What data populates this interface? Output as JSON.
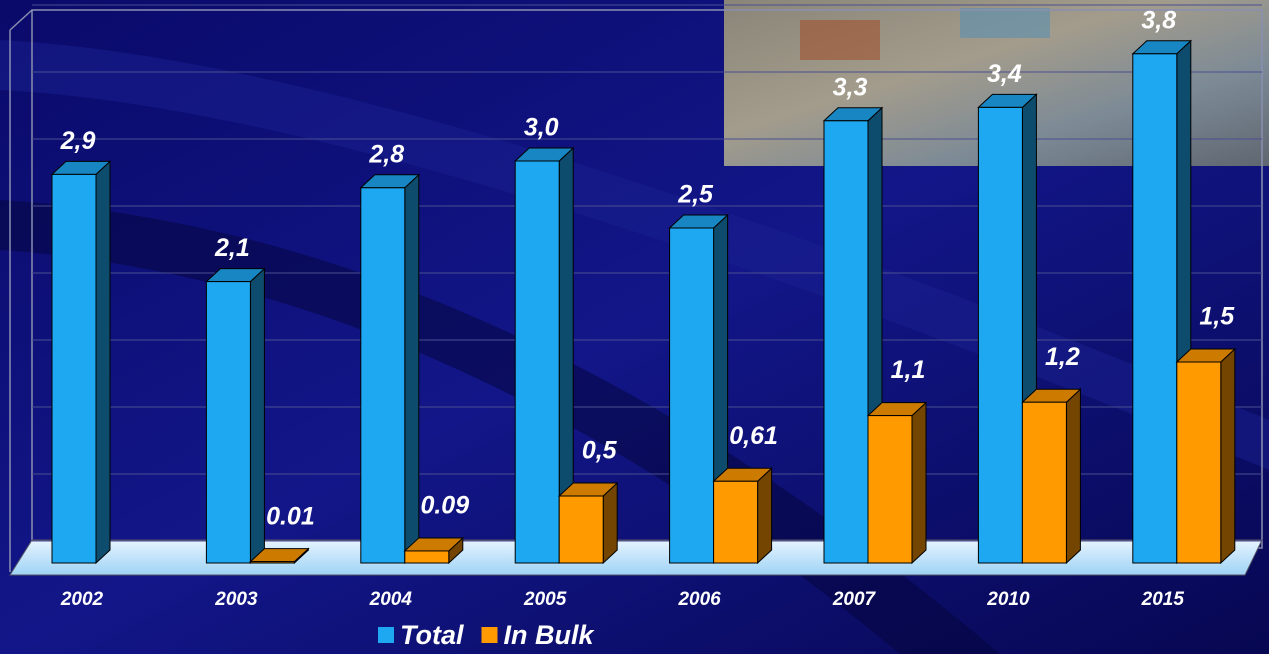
{
  "chart_data": {
    "type": "bar3d",
    "categories": [
      "2002",
      "2003",
      "2004",
      "2005",
      "2006",
      "2007",
      "2010",
      "2015"
    ],
    "series": [
      {
        "name": "Total",
        "color": "#1ea8f2",
        "values": [
          2.9,
          2.1,
          2.8,
          3.0,
          2.5,
          3.3,
          3.4,
          3.8
        ],
        "value_labels": [
          "2,9",
          "2,1",
          "2,8",
          "3,0",
          "2,5",
          "3,3",
          "3,4",
          "3,8"
        ]
      },
      {
        "name": "In Bulk",
        "color": "#ff9a00",
        "values": [
          null,
          0.01,
          0.09,
          0.5,
          0.61,
          1.1,
          1.2,
          1.5
        ],
        "value_labels": [
          null,
          "0.01",
          "0.09",
          "0,5",
          "0,61",
          "1,1",
          "1,2",
          "1,5"
        ]
      }
    ],
    "ylim": [
      0,
      4
    ],
    "yticks": [
      0,
      0.5,
      1,
      1.5,
      2,
      2.5,
      3,
      3.5,
      4
    ],
    "grid": true,
    "legend": "bottom"
  }
}
